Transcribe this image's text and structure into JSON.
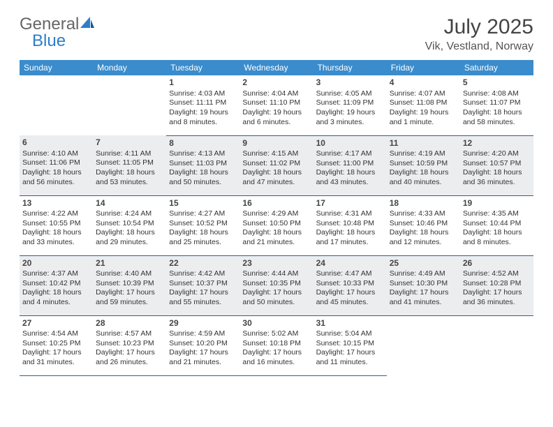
{
  "logo": {
    "word1": "General",
    "word2": "Blue",
    "icon_color": "#2d7dc9",
    "text_gray": "#666666"
  },
  "title": "July 2025",
  "location": "Vik, Vestland, Norway",
  "header_bg": "#3a8ccc",
  "header_fg": "#ffffff",
  "row_alt_bg": "#ecedef",
  "border_color": "#2d5f8f",
  "days_of_week": [
    "Sunday",
    "Monday",
    "Tuesday",
    "Wednesday",
    "Thursday",
    "Friday",
    "Saturday"
  ],
  "weeks": [
    [
      null,
      null,
      {
        "n": "1",
        "sr": "Sunrise: 4:03 AM",
        "ss": "Sunset: 11:11 PM",
        "dl": "Daylight: 19 hours and 8 minutes."
      },
      {
        "n": "2",
        "sr": "Sunrise: 4:04 AM",
        "ss": "Sunset: 11:10 PM",
        "dl": "Daylight: 19 hours and 6 minutes."
      },
      {
        "n": "3",
        "sr": "Sunrise: 4:05 AM",
        "ss": "Sunset: 11:09 PM",
        "dl": "Daylight: 19 hours and 3 minutes."
      },
      {
        "n": "4",
        "sr": "Sunrise: 4:07 AM",
        "ss": "Sunset: 11:08 PM",
        "dl": "Daylight: 19 hours and 1 minute."
      },
      {
        "n": "5",
        "sr": "Sunrise: 4:08 AM",
        "ss": "Sunset: 11:07 PM",
        "dl": "Daylight: 18 hours and 58 minutes."
      }
    ],
    [
      {
        "n": "6",
        "sr": "Sunrise: 4:10 AM",
        "ss": "Sunset: 11:06 PM",
        "dl": "Daylight: 18 hours and 56 minutes."
      },
      {
        "n": "7",
        "sr": "Sunrise: 4:11 AM",
        "ss": "Sunset: 11:05 PM",
        "dl": "Daylight: 18 hours and 53 minutes."
      },
      {
        "n": "8",
        "sr": "Sunrise: 4:13 AM",
        "ss": "Sunset: 11:03 PM",
        "dl": "Daylight: 18 hours and 50 minutes."
      },
      {
        "n": "9",
        "sr": "Sunrise: 4:15 AM",
        "ss": "Sunset: 11:02 PM",
        "dl": "Daylight: 18 hours and 47 minutes."
      },
      {
        "n": "10",
        "sr": "Sunrise: 4:17 AM",
        "ss": "Sunset: 11:00 PM",
        "dl": "Daylight: 18 hours and 43 minutes."
      },
      {
        "n": "11",
        "sr": "Sunrise: 4:19 AM",
        "ss": "Sunset: 10:59 PM",
        "dl": "Daylight: 18 hours and 40 minutes."
      },
      {
        "n": "12",
        "sr": "Sunrise: 4:20 AM",
        "ss": "Sunset: 10:57 PM",
        "dl": "Daylight: 18 hours and 36 minutes."
      }
    ],
    [
      {
        "n": "13",
        "sr": "Sunrise: 4:22 AM",
        "ss": "Sunset: 10:55 PM",
        "dl": "Daylight: 18 hours and 33 minutes."
      },
      {
        "n": "14",
        "sr": "Sunrise: 4:24 AM",
        "ss": "Sunset: 10:54 PM",
        "dl": "Daylight: 18 hours and 29 minutes."
      },
      {
        "n": "15",
        "sr": "Sunrise: 4:27 AM",
        "ss": "Sunset: 10:52 PM",
        "dl": "Daylight: 18 hours and 25 minutes."
      },
      {
        "n": "16",
        "sr": "Sunrise: 4:29 AM",
        "ss": "Sunset: 10:50 PM",
        "dl": "Daylight: 18 hours and 21 minutes."
      },
      {
        "n": "17",
        "sr": "Sunrise: 4:31 AM",
        "ss": "Sunset: 10:48 PM",
        "dl": "Daylight: 18 hours and 17 minutes."
      },
      {
        "n": "18",
        "sr": "Sunrise: 4:33 AM",
        "ss": "Sunset: 10:46 PM",
        "dl": "Daylight: 18 hours and 12 minutes."
      },
      {
        "n": "19",
        "sr": "Sunrise: 4:35 AM",
        "ss": "Sunset: 10:44 PM",
        "dl": "Daylight: 18 hours and 8 minutes."
      }
    ],
    [
      {
        "n": "20",
        "sr": "Sunrise: 4:37 AM",
        "ss": "Sunset: 10:42 PM",
        "dl": "Daylight: 18 hours and 4 minutes."
      },
      {
        "n": "21",
        "sr": "Sunrise: 4:40 AM",
        "ss": "Sunset: 10:39 PM",
        "dl": "Daylight: 17 hours and 59 minutes."
      },
      {
        "n": "22",
        "sr": "Sunrise: 4:42 AM",
        "ss": "Sunset: 10:37 PM",
        "dl": "Daylight: 17 hours and 55 minutes."
      },
      {
        "n": "23",
        "sr": "Sunrise: 4:44 AM",
        "ss": "Sunset: 10:35 PM",
        "dl": "Daylight: 17 hours and 50 minutes."
      },
      {
        "n": "24",
        "sr": "Sunrise: 4:47 AM",
        "ss": "Sunset: 10:33 PM",
        "dl": "Daylight: 17 hours and 45 minutes."
      },
      {
        "n": "25",
        "sr": "Sunrise: 4:49 AM",
        "ss": "Sunset: 10:30 PM",
        "dl": "Daylight: 17 hours and 41 minutes."
      },
      {
        "n": "26",
        "sr": "Sunrise: 4:52 AM",
        "ss": "Sunset: 10:28 PM",
        "dl": "Daylight: 17 hours and 36 minutes."
      }
    ],
    [
      {
        "n": "27",
        "sr": "Sunrise: 4:54 AM",
        "ss": "Sunset: 10:25 PM",
        "dl": "Daylight: 17 hours and 31 minutes."
      },
      {
        "n": "28",
        "sr": "Sunrise: 4:57 AM",
        "ss": "Sunset: 10:23 PM",
        "dl": "Daylight: 17 hours and 26 minutes."
      },
      {
        "n": "29",
        "sr": "Sunrise: 4:59 AM",
        "ss": "Sunset: 10:20 PM",
        "dl": "Daylight: 17 hours and 21 minutes."
      },
      {
        "n": "30",
        "sr": "Sunrise: 5:02 AM",
        "ss": "Sunset: 10:18 PM",
        "dl": "Daylight: 17 hours and 16 minutes."
      },
      {
        "n": "31",
        "sr": "Sunrise: 5:04 AM",
        "ss": "Sunset: 10:15 PM",
        "dl": "Daylight: 17 hours and 11 minutes."
      },
      null,
      null
    ]
  ]
}
